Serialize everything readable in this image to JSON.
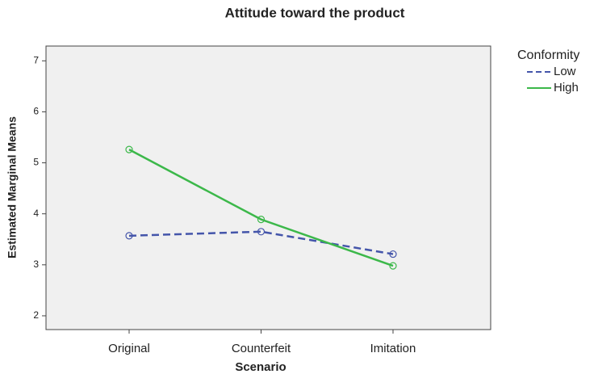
{
  "chart_data": {
    "type": "line",
    "title": "Attitude toward the product",
    "x_label": "Scenario",
    "y_label": "Estimated Marginal Means",
    "categories": [
      "Original",
      "Counterfeit",
      "Imitation"
    ],
    "legend_title": "Conformity",
    "series": [
      {
        "name": "Low",
        "color": "#4455aa",
        "dashed": true,
        "values": [
          3.57,
          3.65,
          3.21
        ]
      },
      {
        "name": "High",
        "color": "#3cb84a",
        "dashed": false,
        "values": [
          5.26,
          3.89,
          2.98
        ]
      }
    ],
    "ylim": [
      1.73,
      7.29
    ],
    "yticks": [
      2,
      3,
      4,
      5,
      6,
      7
    ]
  }
}
